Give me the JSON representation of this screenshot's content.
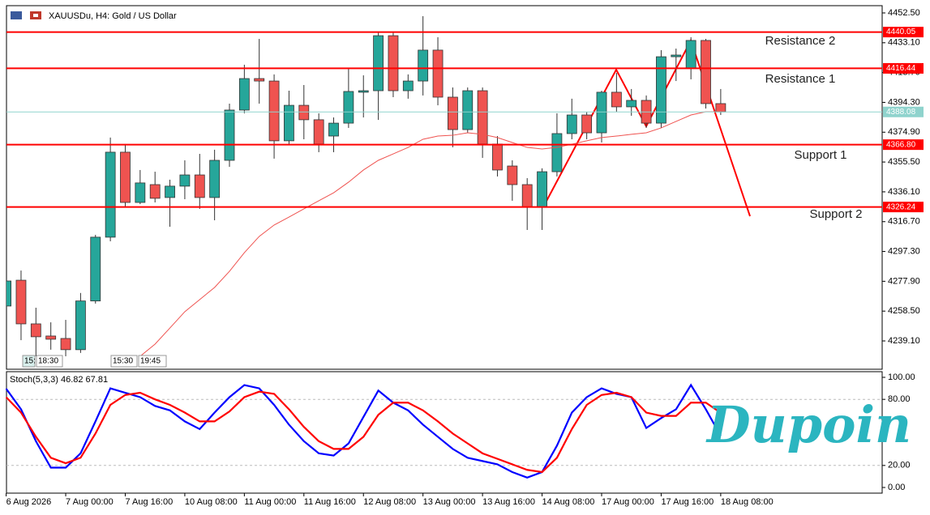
{
  "chart_data": [
    {
      "type": "candlestick",
      "title": "XAUUSDu, H4:  Gold / US Dollar",
      "categories": [
        "6 Aug 2026",
        null,
        null,
        null,
        "7 Aug 00:00",
        null,
        null,
        null,
        "7 Aug 16:00",
        null,
        null,
        null,
        "10 Aug 08:00",
        null,
        null,
        null,
        "11 Aug 00:00",
        null,
        null,
        null,
        "11 Aug 16:00",
        null,
        null,
        null,
        "12 Aug 08:00",
        null,
        null,
        null,
        "13 Aug 00:00",
        null,
        null,
        null,
        "13 Aug 16:00",
        null,
        null,
        null,
        "14 Aug 08:00",
        null,
        null,
        null,
        "17 Aug 00:00",
        null,
        null,
        null,
        "17 Aug 16:00",
        null,
        null,
        null,
        "18 Aug 08:00"
      ],
      "open": [
        4261.8,
        4278.6,
        4250.2,
        4242.3,
        4240.7,
        4233.4,
        4265.1,
        4306.6,
        4361.9,
        4329.2,
        4340.8,
        4332.4,
        4339.8,
        4347.1,
        4332.4,
        4356.6,
        4389.3,
        4409.8,
        4408.2,
        4369.3,
        4392.4,
        4383.0,
        4372.4,
        4380.8,
        4400.9,
        4401.9,
        4437.7,
        4401.9,
        4408.2,
        4428.3,
        4397.7,
        4376.6,
        4401.9,
        4367.2,
        4352.9,
        4340.8,
        4326.0,
        4349.2,
        4374.0,
        4386.1,
        4374.5,
        4400.9,
        4391.4,
        4395.6,
        4380.8,
        4424.0,
        4416.7,
        4434.6,
        4393.5
      ],
      "high": [
        4279.5,
        4284.9,
        4260.7,
        4251.2,
        4252.8,
        4270.3,
        4308.1,
        4371.4,
        4367.2,
        4350.3,
        4349.2,
        4344.0,
        4356.6,
        4360.8,
        4363.5,
        4393.5,
        4418.8,
        4435.6,
        4412.5,
        4401.9,
        4405.6,
        4387.2,
        4384.5,
        4416.1,
        4411.9,
        4439.9,
        4439.9,
        4412.5,
        4450.4,
        4436.7,
        4404.0,
        4404.0,
        4404.0,
        4372.4,
        4356.6,
        4345.0,
        4351.4,
        4387.2,
        4396.7,
        4388.2,
        4401.9,
        4413.5,
        4403.0,
        4398.8,
        4428.3,
        4429.3,
        4436.7,
        4435.6,
        4403.0
      ],
      "low": [
        4260.7,
        4239.6,
        4229.1,
        4233.4,
        4229.1,
        4231.3,
        4263.4,
        4303.9,
        4326.6,
        4328.1,
        4329.2,
        4313.4,
        4331.3,
        4325.0,
        4317.6,
        4352.4,
        4387.2,
        4393.5,
        4357.7,
        4367.2,
        4370.3,
        4361.9,
        4361.9,
        4377.7,
        4384.5,
        4382.9,
        4397.7,
        4396.7,
        4398.8,
        4392.4,
        4365.1,
        4374.5,
        4358.2,
        4346.1,
        4330.3,
        4311.3,
        4311.3,
        4346.1,
        4370.3,
        4370.3,
        4368.2,
        4388.2,
        4385.6,
        4377.7,
        4377.7,
        4408.2,
        4409.3,
        4390.3,
        4386.1
      ],
      "close": [
        4278.1,
        4250.2,
        4241.8,
        4240.2,
        4233.4,
        4265.1,
        4306.6,
        4361.9,
        4329.2,
        4341.9,
        4331.9,
        4339.8,
        4347.1,
        4332.4,
        4356.6,
        4389.3,
        4409.8,
        4408.2,
        4369.3,
        4392.4,
        4383.0,
        4367.2,
        4380.8,
        4401.4,
        4401.9,
        4437.7,
        4401.9,
        4408.2,
        4428.3,
        4397.7,
        4376.6,
        4401.9,
        4367.2,
        4350.3,
        4340.8,
        4326.0,
        4349.2,
        4374.0,
        4386.1,
        4374.5,
        4400.9,
        4391.4,
        4395.6,
        4380.8,
        4424.0,
        4425.1,
        4434.6,
        4393.5,
        4388.08
      ],
      "up_color": "#26a69a",
      "down_color": "#ef5350",
      "ma": {
        "color": "#ef5350",
        "values": [
          null,
          null,
          null,
          null,
          null,
          null,
          null,
          null,
          null,
          4229.1,
          4237.0,
          4247.5,
          4258.1,
          4266.0,
          4273.9,
          4284.4,
          4296.5,
          4307.1,
          4314.5,
          4319.7,
          4325.0,
          4330.3,
          4335.5,
          4342.4,
          4350.3,
          4356.6,
          4360.8,
          4365.0,
          4370.3,
          4372.4,
          4372.9,
          4374.5,
          4373.5,
          4371.4,
          4368.2,
          4365.0,
          4364.0,
          4365.0,
          4367.1,
          4369.3,
          4371.4,
          4372.4,
          4373.5,
          4374.5,
          4377.7,
          4381.9,
          4386.1,
          4388.2,
          4388.2
        ]
      },
      "levels": [
        {
          "name": "Resistance 2",
          "price": 4440.05,
          "color": "#ff0000"
        },
        {
          "name": "Resistance 1",
          "price": 4416.44,
          "color": "#ff0000"
        },
        {
          "name": "Support 1",
          "price": {
            "value": 4366.8,
            "label": "4366.80"
          },
          "color": "#ff0000"
        },
        {
          "name": "Support 2",
          "price": 4326.24,
          "color": "#ff0000"
        }
      ],
      "current_price": {
        "value": 4388.08,
        "label": "4388.08",
        "color": "#8fd3cd"
      },
      "time_markers": [
        "15:",
        "18:30",
        "15:30",
        "19:45"
      ],
      "ylim": [
        4221.2,
        4456.7
      ],
      "yticks": [
        {
          "value": 4452.5,
          "label": "4452.50"
        },
        {
          "value": 4433.1,
          "label": "4433.10"
        },
        {
          "value": 4413.7,
          "label": "4413.70"
        },
        {
          "value": 4394.3,
          "label": "4394.30"
        },
        {
          "value": 4374.9,
          "label": "4374.90"
        },
        {
          "value": 4355.5,
          "label": "4355.50"
        },
        {
          "value": 4336.1,
          "label": "4336.10"
        },
        {
          "value": 4316.7,
          "label": "4316.70"
        },
        {
          "value": 4297.3,
          "label": "4297.30"
        },
        {
          "value": 4277.9,
          "label": "4277.90"
        },
        {
          "value": 4258.5,
          "label": "4258.50"
        },
        {
          "value": 4239.1,
          "label": "4239.10"
        }
      ]
    },
    {
      "type": "line",
      "title": "Stoch(5,3,3) 46.82 67.81",
      "series": [
        {
          "color": "#0000ff",
          "values": [
            89.7,
            71,
            42,
            18,
            18,
            31,
            60,
            90,
            86,
            82,
            74,
            70,
            60,
            53,
            68,
            82,
            93,
            90,
            75,
            57,
            42,
            31,
            29,
            40,
            64,
            88,
            77,
            70,
            57,
            46,
            35,
            27,
            24,
            21,
            14,
            9,
            14,
            38,
            68,
            82,
            90,
            85,
            82,
            54,
            63,
            71,
            93,
            71,
            46.82
          ]
        },
        {
          "color": "#ff0000",
          "values": [
            82,
            68,
            46,
            27,
            22,
            27,
            49,
            75,
            84,
            86,
            80,
            75,
            68,
            60,
            60,
            69,
            82,
            87,
            85,
            71,
            55,
            42,
            35,
            35,
            46,
            66,
            77,
            77,
            70,
            60,
            49,
            40,
            31,
            26,
            21,
            16,
            14,
            27,
            53,
            75,
            84,
            86,
            82,
            68,
            65,
            65,
            77,
            77,
            67.81
          ]
        }
      ],
      "ylim": [
        -4.4,
        104.4
      ],
      "yticks": [
        {
          "value": 100,
          "label": "100.00"
        },
        {
          "value": 80,
          "label": "80.00"
        },
        {
          "value": 20,
          "label": "20.00"
        },
        {
          "value": 0,
          "label": "0.00"
        }
      ],
      "grid_levels": [
        80,
        20
      ]
    }
  ],
  "watermark": "Dupoin"
}
